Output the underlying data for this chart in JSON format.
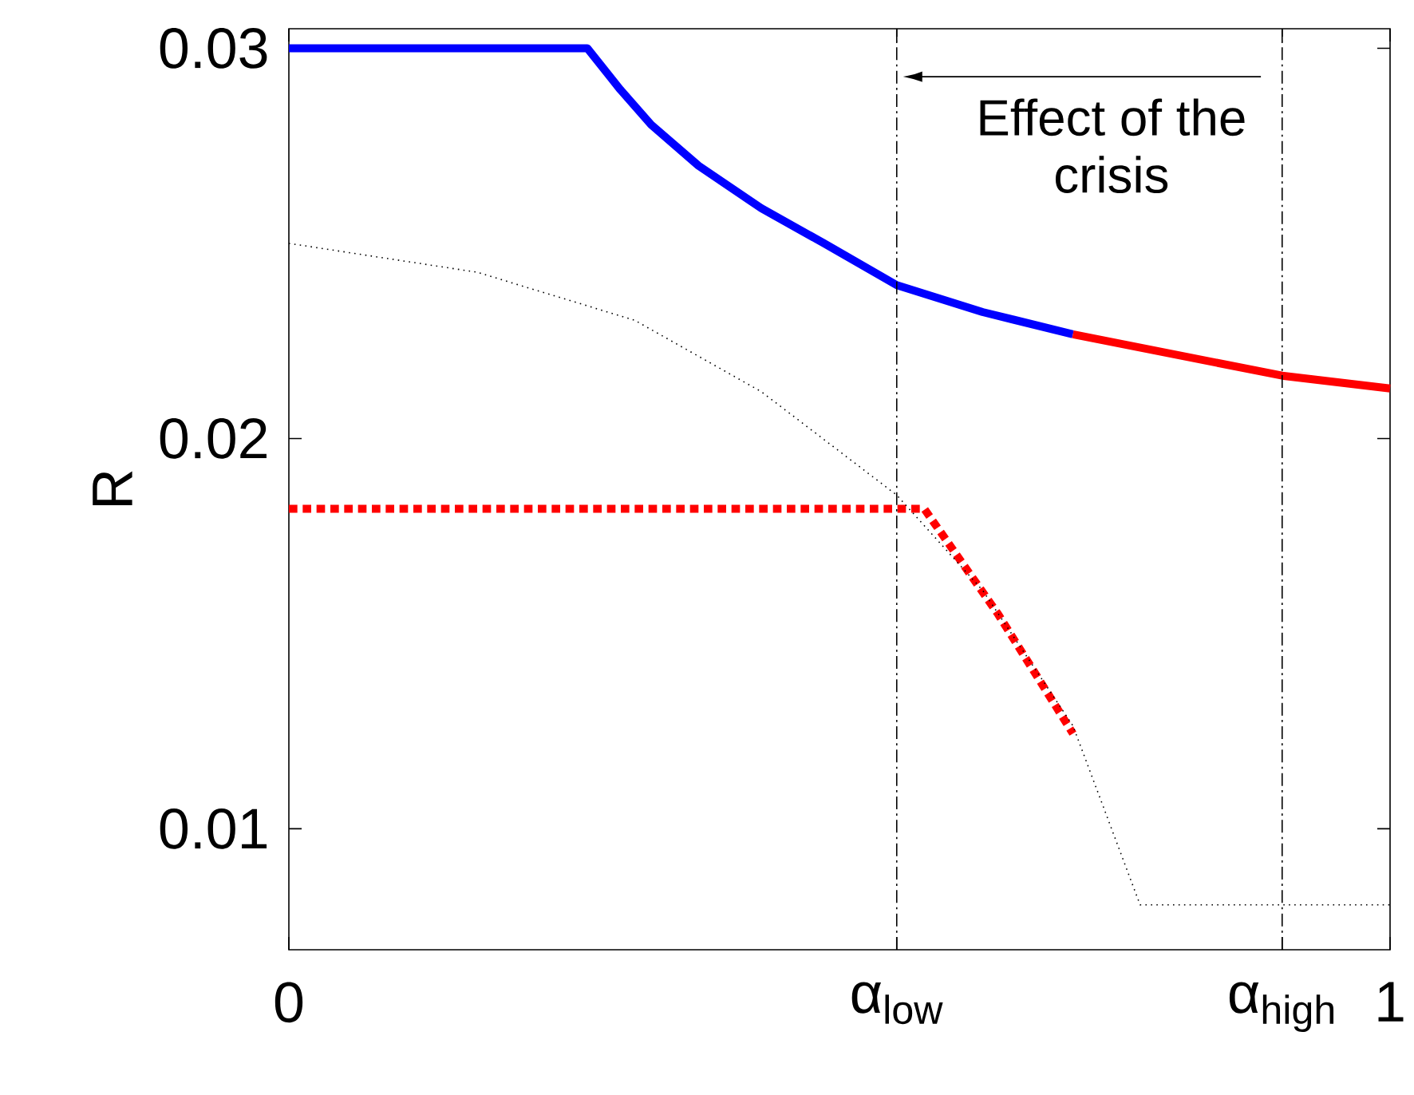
{
  "chart_data": {
    "type": "line",
    "ylabel": "R",
    "xlim": [
      0,
      1
    ],
    "ylim": [
      0.0069,
      0.0305
    ],
    "xticks": [
      0,
      {
        "value": 0.552,
        "label": "α$_{low}$"
      },
      {
        "value": 0.902,
        "label": "α$_{high}$"
      },
      1
    ],
    "yticks": [
      0.01,
      0.02,
      0.03
    ],
    "series": [
      {
        "color": "#0000ff",
        "line_style": "solid",
        "x": [
          0,
          0.271,
          0.301,
          0.329,
          0.372,
          0.429,
          0.486,
          0.552,
          0.63,
          0.712
        ],
        "values": [
          0.03,
          0.03,
          0.02894,
          0.02804,
          0.02699,
          0.0259,
          0.025,
          0.02393,
          0.02324,
          0.02267
        ]
      },
      {
        "color": "#ff0000",
        "line_style": "solid",
        "x": [
          0.712,
          0.902,
          1.0
        ],
        "values": [
          0.02267,
          0.02161,
          0.02128
        ]
      },
      {
        "color": "#ff0000",
        "line_style": "dashed",
        "x": [
          0,
          0.577,
          0.644,
          0.712
        ],
        "values": [
          0.0182,
          0.0182,
          0.0155,
          0.01244
        ]
      },
      {
        "color": "#000000",
        "line_style": "dotted",
        "x": [
          0,
          0.171,
          0.314,
          0.429,
          0.552,
          0.63,
          0.712,
          0.773,
          1.0
        ],
        "values": [
          0.025,
          0.02426,
          0.02303,
          0.0212,
          0.01855,
          0.01611,
          0.01264,
          0.00805,
          0.00805
        ]
      }
    ],
    "ref_lines": [
      {
        "axis": "x",
        "value": 0.552,
        "line_style": "dashdot"
      },
      {
        "axis": "x",
        "value": 0.902,
        "line_style": "dashdot"
      }
    ],
    "annotations": [
      "Effect of the crisis"
    ]
  }
}
